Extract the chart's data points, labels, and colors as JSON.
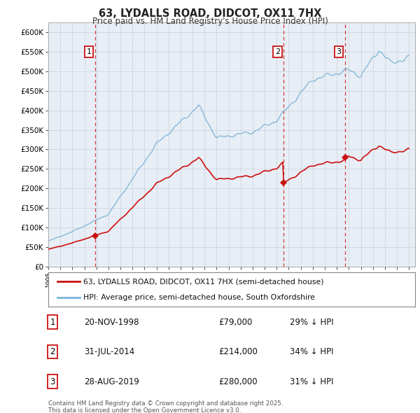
{
  "title": "63, LYDALLS ROAD, DIDCOT, OX11 7HX",
  "subtitle": "Price paid vs. HM Land Registry's House Price Index (HPI)",
  "legend_line1": "63, LYDALLS ROAD, DIDCOT, OX11 7HX (semi-detached house)",
  "legend_line2": "HPI: Average price, semi-detached house, South Oxfordshire",
  "footer1": "Contains HM Land Registry data © Crown copyright and database right 2025.",
  "footer2": "This data is licensed under the Open Government Licence v3.0.",
  "sale_prices": [
    79000,
    214000,
    280000
  ],
  "sale_labels": [
    "1",
    "2",
    "3"
  ],
  "sale_info": [
    {
      "num": "1",
      "date": "20-NOV-1998",
      "price": "£79,000",
      "pct": "29% ↓ HPI"
    },
    {
      "num": "2",
      "date": "31-JUL-2014",
      "price": "£214,000",
      "pct": "34% ↓ HPI"
    },
    {
      "num": "3",
      "date": "28-AUG-2019",
      "price": "£280,000",
      "pct": "31% ↓ HPI"
    }
  ],
  "hpi_color": "#7ab4d8",
  "price_color": "#cc1111",
  "vline_color": "#cc1111",
  "chart_bg": "#e8eef5",
  "background_color": "#ffffff",
  "grid_color": "#c8d0dc",
  "ylim": [
    0,
    625000
  ],
  "yticks": [
    0,
    50000,
    100000,
    150000,
    200000,
    250000,
    300000,
    350000,
    400000,
    450000,
    500000,
    550000,
    600000
  ],
  "sale_years": [
    1998.875,
    2014.583,
    2019.667
  ]
}
